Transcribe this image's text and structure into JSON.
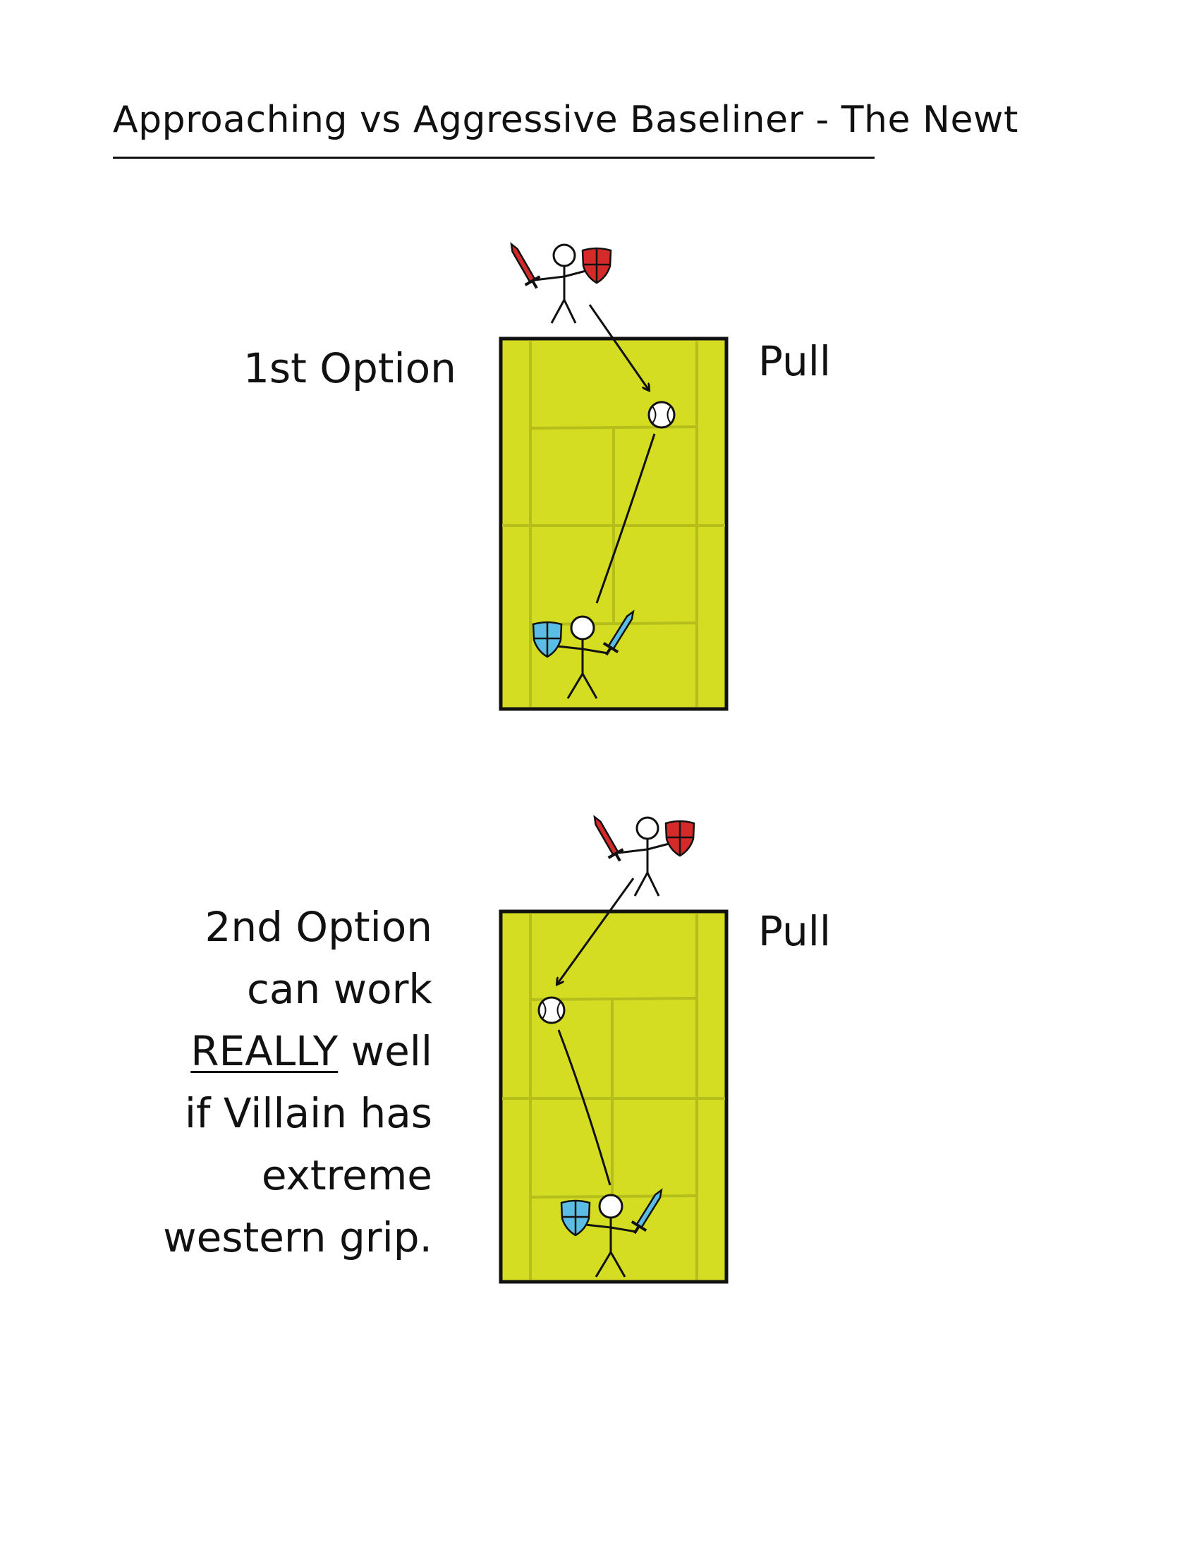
{
  "title": "Approaching vs Aggressive Baseliner - The Newt",
  "colors": {
    "court": "#d4dd22",
    "court_lines": "#b7bf1c",
    "ink": "#111111",
    "villain": "#d42a2a",
    "hero": "#5bbde6"
  },
  "options": [
    {
      "label": "1st Option",
      "side_label": "Pull"
    },
    {
      "label": "2nd Option",
      "side_label": "Pull",
      "description": {
        "line1": "can work",
        "line2_emph": "REALLY",
        "line2_rest": " well",
        "line3": "if Villain has",
        "line4": "extreme",
        "line5": "western grip."
      }
    }
  ],
  "icons": [
    "sword-icon",
    "shield-icon",
    "tennis-ball-icon",
    "stick-figure-icon"
  ]
}
